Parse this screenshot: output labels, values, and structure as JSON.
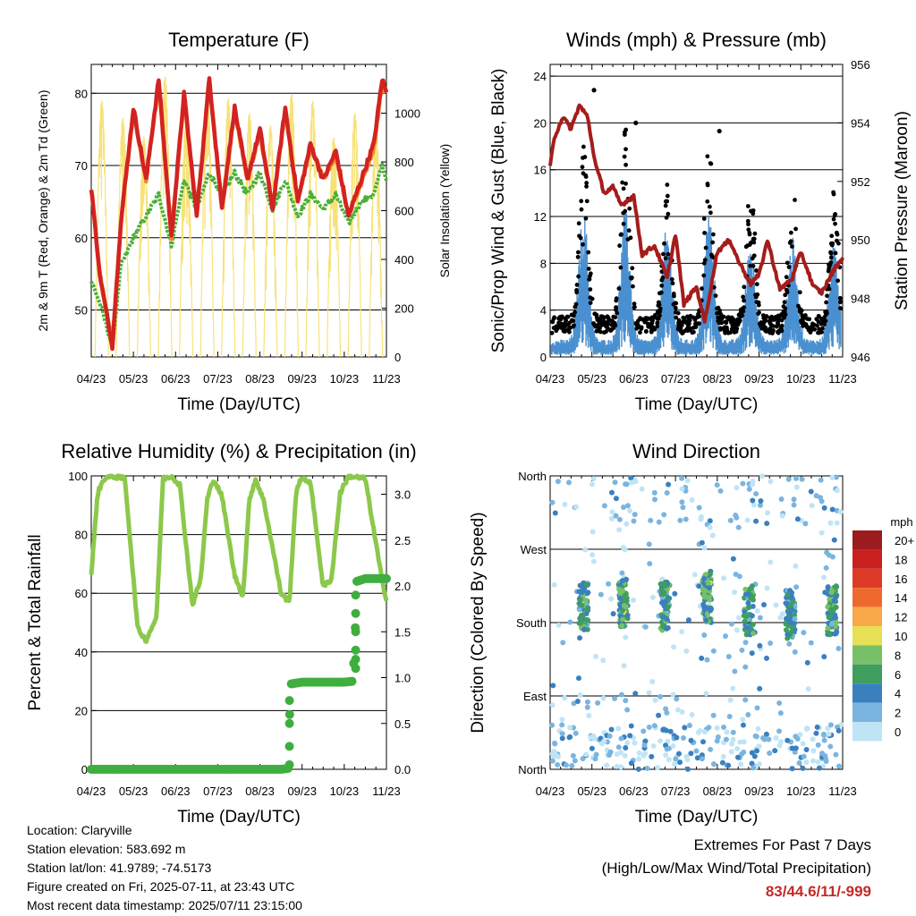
{
  "colors": {
    "temp_red": "#d32222",
    "temp_orange": "#f08a2a",
    "dewpoint_green": "#4caf3a",
    "solar_yellow": "#f7e27a",
    "wind_blue": "#4a90d0",
    "gust_black": "#000000",
    "pressure_maroon": "#a51c1c",
    "rh_green": "#8cc84b",
    "precip_green": "#3fae3f",
    "extremes_red": "#c62828"
  },
  "x_ticks": [
    "04/23",
    "05/23",
    "06/23",
    "07/23",
    "08/23",
    "09/23",
    "10/23",
    "11/23"
  ],
  "chart_data": [
    {
      "id": "temperature",
      "type": "line",
      "title": "Temperature (F)",
      "xlabel": "Time (Day/UTC)",
      "ylabel": "2m & 9m T (Red, Orange) & 2m Td (Green)",
      "ylabel_right": "Solar Insolation (Yellow)",
      "ylim": [
        43.5,
        84
      ],
      "yticks": [
        50,
        60,
        70,
        80
      ],
      "ylim_right": [
        0,
        1200
      ],
      "yticks_right": [
        0,
        200,
        400,
        600,
        800,
        1000
      ],
      "grid": "horizontal",
      "x": [
        0,
        0.2,
        0.5,
        0.7,
        1.0,
        1.3,
        1.6,
        1.9,
        2.2,
        2.5,
        2.8,
        3.1,
        3.4,
        3.7,
        4.0,
        4.3,
        4.6,
        4.9,
        5.2,
        5.5,
        5.8,
        6.1,
        6.4,
        6.7,
        6.9,
        7.0
      ],
      "series": [
        {
          "key": "t2m",
          "color": "#d32222",
          "values": [
            67,
            55,
            45,
            62,
            78,
            68,
            82,
            60,
            80,
            63,
            82,
            64,
            78,
            68,
            75,
            64,
            78,
            65,
            73,
            68,
            72,
            63,
            68,
            73,
            82,
            80
          ]
        },
        {
          "key": "t9m",
          "color": "#f08a2a",
          "values": [
            67,
            55,
            45.3,
            62,
            77.5,
            68,
            81.5,
            60.2,
            79.5,
            63.3,
            81.5,
            64.2,
            77.5,
            68.2,
            74.5,
            64.2,
            77.5,
            65.2,
            72.5,
            68.2,
            71.5,
            63.2,
            67.5,
            72.5,
            81.5,
            80
          ]
        },
        {
          "key": "td2m",
          "color": "#4caf3a",
          "values": [
            54,
            51,
            45,
            56,
            60,
            63,
            66,
            59,
            68,
            64,
            69,
            66,
            69,
            66,
            69,
            64,
            68,
            63,
            66,
            64,
            66,
            62,
            65,
            66,
            70,
            68
          ]
        }
      ],
      "solar": {
        "color": "#f7e27a",
        "peaks": [
          1050,
          980,
          900,
          1150,
          1000,
          1100,
          1060,
          1000,
          950,
          1080,
          1050,
          900,
          1000,
          950
        ],
        "days": 7
      }
    },
    {
      "id": "winds",
      "type": "scatter",
      "title": "Winds (mph) & Pressure (mb)",
      "xlabel": "Time (Day/UTC)",
      "ylabel": "Sonic/Prop Wind & Gust (Blue, Black)",
      "ylabel_right": "Station Pressure (Maroon)",
      "ylim": [
        0,
        25
      ],
      "yticks": [
        0,
        4,
        8,
        12,
        16,
        20,
        24
      ],
      "ylim_right": [
        946,
        956
      ],
      "yticks_right": [
        946,
        948,
        950,
        952,
        954,
        956
      ],
      "grid": "horizontal",
      "wind_peaks": [
        {
          "x": 0.8,
          "wind": 9,
          "gust": 16
        },
        {
          "x": 1.8,
          "wind": 9,
          "gust": 17
        },
        {
          "x": 2.8,
          "wind": 8,
          "gust": 12
        },
        {
          "x": 3.8,
          "wind": 9,
          "gust": 16
        },
        {
          "x": 4.8,
          "wind": 7,
          "gust": 12
        },
        {
          "x": 5.8,
          "wind": 7,
          "gust": 12
        },
        {
          "x": 6.8,
          "wind": 7,
          "gust": 12
        }
      ],
      "gust_max": [
        {
          "x": 1.05,
          "y": 22.8
        },
        {
          "x": 2.05,
          "y": 20
        },
        {
          "x": 4.05,
          "y": 19.3
        }
      ],
      "pressure": {
        "color": "#a51c1c",
        "x": [
          0,
          0.1,
          0.3,
          0.5,
          0.7,
          0.9,
          1.0,
          1.1,
          1.3,
          1.5,
          1.7,
          2.0,
          2.2,
          2.5,
          2.8,
          3.0,
          3.2,
          3.5,
          3.7,
          4.0,
          4.3,
          4.5,
          4.8,
          5.0,
          5.2,
          5.5,
          5.8,
          6.0,
          6.3,
          6.5,
          6.8,
          7.0
        ],
        "values": [
          952.5,
          953.5,
          954.2,
          953.8,
          954.6,
          954.2,
          953.3,
          952.5,
          951.6,
          951.8,
          951.2,
          951.5,
          949.5,
          949.8,
          948.7,
          950.2,
          947.8,
          948.4,
          947.2,
          949.6,
          950.0,
          949.3,
          948.5,
          948.8,
          950.0,
          948.3,
          948.7,
          949.6,
          948.4,
          948.2,
          949.0,
          949.4
        ]
      }
    },
    {
      "id": "rh_precip",
      "type": "line",
      "title": "Relative Humidity (%) & Precipitation (in)",
      "xlabel": "Time (Day/UTC)",
      "ylabel": "Percent & Total Rainfall",
      "ylim": [
        0,
        100
      ],
      "yticks": [
        0,
        20,
        40,
        60,
        80,
        100
      ],
      "ylim_right": [
        0,
        3.2
      ],
      "yticks_right": [
        "0.0",
        "0.5",
        "1.0",
        "1.5",
        "2.0",
        "2.5",
        "3.0"
      ],
      "grid": "horizontal",
      "rh": {
        "x": [
          0,
          0.15,
          0.3,
          0.5,
          0.8,
          1.1,
          1.3,
          1.55,
          1.7,
          1.9,
          2.1,
          2.4,
          2.6,
          2.75,
          2.9,
          3.1,
          3.4,
          3.6,
          3.75,
          3.9,
          4.1,
          4.5,
          4.7,
          4.85,
          4.95,
          5.2,
          5.5,
          5.7,
          5.9,
          6.1,
          6.5,
          6.9,
          7.0
        ],
        "values": [
          66,
          94,
          99,
          100,
          99,
          48,
          44,
          52,
          99,
          100,
          97,
          56,
          65,
          92,
          99,
          93,
          66,
          59,
          92,
          99,
          91,
          60,
          57,
          93,
          99,
          98,
          62,
          65,
          94,
          100,
          99,
          64,
          58
        ]
      },
      "precip": {
        "x": [
          0,
          0.5,
          1.0,
          1.5,
          2.0,
          2.5,
          3.0,
          3.5,
          4.0,
          4.5,
          4.68,
          4.72,
          5.0,
          5.5,
          6.0,
          6.2,
          6.25,
          6.3,
          6.5,
          7.0
        ],
        "values": [
          0,
          0,
          0,
          0,
          0,
          0,
          0,
          0,
          0,
          0,
          0.01,
          0.93,
          0.95,
          0.95,
          0.95,
          0.96,
          1.4,
          2.05,
          2.08,
          2.08
        ]
      }
    },
    {
      "id": "wind_direction",
      "type": "scatter",
      "title": "Wind Direction",
      "xlabel": "Time (Day/UTC)",
      "ylabel": "Direction (Colored By Speed)",
      "yticks": [
        "North",
        "East",
        "South",
        "West",
        "North"
      ],
      "ylim": [
        0,
        360
      ],
      "grid": "horizontal",
      "legend": {
        "title": "mph",
        "placement": "right",
        "labels": [
          "20+",
          "18",
          "16",
          "14",
          "12",
          "10",
          "8",
          "6",
          "4",
          "2",
          "0"
        ],
        "colors": [
          "#9b1b1e",
          "#c8201f",
          "#dc3a26",
          "#ee6a2c",
          "#f8a848",
          "#e6e054",
          "#77c067",
          "#3f9e5e",
          "#3a80bf",
          "#7ab5e0",
          "#bfe4f6"
        ]
      },
      "clusters": [
        {
          "x": 0.8,
          "dir": 200,
          "speed": 7
        },
        {
          "x": 1.75,
          "dir": 205,
          "speed": 8
        },
        {
          "x": 2.75,
          "dir": 200,
          "speed": 7
        },
        {
          "x": 3.75,
          "dir": 210,
          "speed": 8
        },
        {
          "x": 4.75,
          "dir": 195,
          "speed": 7
        },
        {
          "x": 5.75,
          "dir": 190,
          "speed": 6
        },
        {
          "x": 6.75,
          "dir": 195,
          "speed": 7
        }
      ]
    }
  ],
  "info": {
    "location": "Location: Claryville",
    "elevation": "Station elevation: 583.692 m",
    "latlon": "Station lat/lon: 41.9789; -74.5173",
    "created": "Figure created on Fri, 2025-07-11, at 23:43 UTC",
    "recent": "Most recent data timestamp: 2025/07/11 23:15:00"
  },
  "extremes": {
    "line1": "Extremes For Past 7 Days",
    "line2": "(High/Low/Max Wind/Total Precipitation)",
    "value": "83/44.6/11/-999"
  }
}
